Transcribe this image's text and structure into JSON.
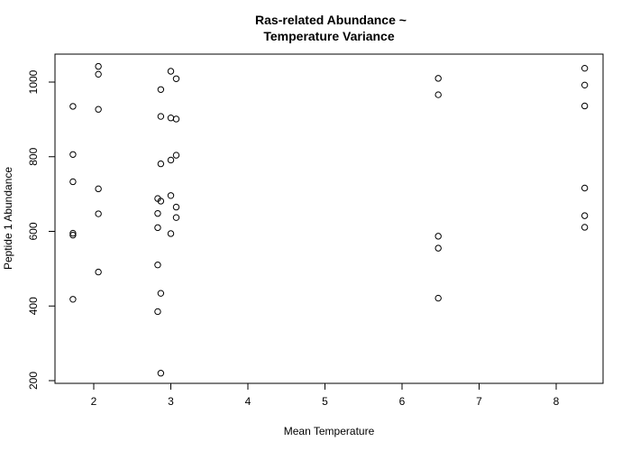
{
  "chart_data": {
    "type": "scatter",
    "title_lines": [
      "Ras-related Abundance ~",
      "Temperature Variance"
    ],
    "xlabel": "Mean Temperature",
    "ylabel": "Peptide 1 Abundance",
    "xlim": [
      1.5,
      8.5
    ],
    "ylim": [
      190,
      1080
    ],
    "xticks": [
      2,
      3,
      4,
      5,
      6,
      7,
      8
    ],
    "yticks": [
      200,
      400,
      600,
      800,
      1000
    ],
    "grid": false,
    "series": [
      {
        "points": [
          [
            1.73,
            935
          ],
          [
            1.73,
            806
          ],
          [
            1.73,
            733
          ],
          [
            1.73,
            595
          ],
          [
            1.73,
            590
          ],
          [
            1.73,
            418
          ],
          [
            2.06,
            1042
          ],
          [
            2.06,
            1021
          ],
          [
            2.06,
            927
          ],
          [
            2.06,
            714
          ],
          [
            2.06,
            647
          ],
          [
            2.06,
            491
          ],
          [
            2.83,
            688
          ],
          [
            2.83,
            648
          ],
          [
            2.83,
            610
          ],
          [
            2.83,
            510
          ],
          [
            2.83,
            385
          ],
          [
            2.87,
            980
          ],
          [
            2.87,
            908
          ],
          [
            2.87,
            781
          ],
          [
            2.87,
            681
          ],
          [
            2.87,
            434
          ],
          [
            2.87,
            220
          ],
          [
            3.0,
            1029
          ],
          [
            3.0,
            904
          ],
          [
            3.0,
            791
          ],
          [
            3.0,
            696
          ],
          [
            3.0,
            594
          ],
          [
            3.07,
            1009
          ],
          [
            3.07,
            901
          ],
          [
            3.07,
            804
          ],
          [
            3.07,
            665
          ],
          [
            3.07,
            637
          ],
          [
            6.47,
            1010
          ],
          [
            6.47,
            966
          ],
          [
            6.47,
            587
          ],
          [
            6.47,
            555
          ],
          [
            6.47,
            421
          ],
          [
            8.37,
            1037
          ],
          [
            8.37,
            992
          ],
          [
            8.37,
            936
          ],
          [
            8.37,
            716
          ],
          [
            8.37,
            642
          ],
          [
            8.37,
            611
          ]
        ]
      }
    ]
  }
}
